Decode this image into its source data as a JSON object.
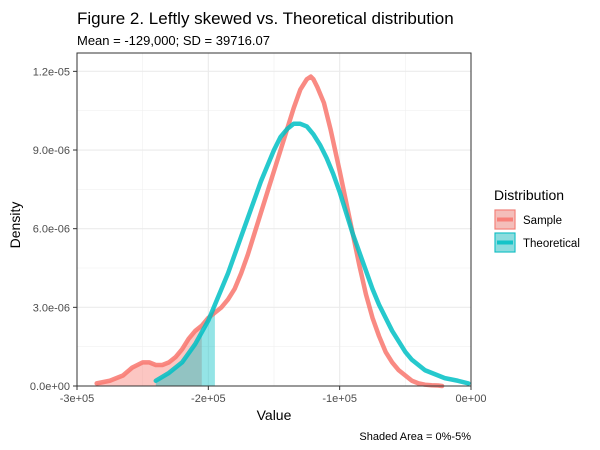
{
  "chart_data": {
    "type": "area",
    "title": "Figure 2. Leftly skewed vs. Theoretical distribution",
    "subtitle": "Mean = -129,000; SD = 39716.07",
    "xlabel": "Value",
    "ylabel": "Density",
    "caption": "Shaded Area = 0%-5%",
    "xlim": [
      -300000,
      0
    ],
    "ylim": [
      0,
      1.27e-05
    ],
    "x_ticks": [
      {
        "value": -300000,
        "label": "-3e+05"
      },
      {
        "value": -200000,
        "label": "-2e+05"
      },
      {
        "value": -100000,
        "label": "-1e+05"
      },
      {
        "value": 0,
        "label": "0e+00"
      }
    ],
    "y_ticks": [
      {
        "value": 0,
        "label": "0.0e+00"
      },
      {
        "value": 3e-06,
        "label": "3.0e-06"
      },
      {
        "value": 6e-06,
        "label": "6.0e-06"
      },
      {
        "value": 9e-06,
        "label": "9.0e-06"
      },
      {
        "value": 1.2e-05,
        "label": "1.2e-05"
      }
    ],
    "grid": true,
    "legend_title": "Distribution",
    "legend_position": "right",
    "series": [
      {
        "name": "Sample",
        "color": "#F8766D",
        "x": [
          -285000,
          -275000,
          -265000,
          -258000,
          -250000,
          -245000,
          -240000,
          -235000,
          -230000,
          -225000,
          -220000,
          -215000,
          -210000,
          -205000,
          -200000,
          -195000,
          -190000,
          -185000,
          -180000,
          -175000,
          -170000,
          -165000,
          -160000,
          -155000,
          -150000,
          -145000,
          -140000,
          -135000,
          -130000,
          -125000,
          -122000,
          -120000,
          -117000,
          -112000,
          -107000,
          -100000,
          -95000,
          -90000,
          -85000,
          -80000,
          -75000,
          -70000,
          -65000,
          -60000,
          -55000,
          -50000,
          -45000,
          -40000,
          -35000,
          -30000,
          -25000,
          -22000
        ],
        "y": [
          1e-07,
          2e-07,
          4e-07,
          7e-07,
          9e-07,
          9e-07,
          8e-07,
          8e-07,
          9e-07,
          1.1e-06,
          1.4e-06,
          1.8e-06,
          2.1e-06,
          2.3e-06,
          2.6e-06,
          2.8e-06,
          3e-06,
          3.3e-06,
          3.7e-06,
          4.3e-06,
          5e-06,
          5.8e-06,
          6.6e-06,
          7.4e-06,
          8.2e-06,
          9e-06,
          9.8e-06,
          1.06e-05,
          1.13e-05,
          1.17e-05,
          1.18e-05,
          1.17e-05,
          1.14e-05,
          1.08e-05,
          9.8e-06,
          8.2e-06,
          7e-06,
          5.8e-06,
          4.6e-06,
          3.5e-06,
          2.6e-06,
          1.9e-06,
          1.3e-06,
          9e-07,
          6e-07,
          4e-07,
          2e-07,
          1e-07,
          5e-08,
          3e-08,
          2e-08,
          0.0
        ],
        "shaded_range": [
          -285000,
          -205000
        ]
      },
      {
        "name": "Theoretical",
        "color": "#00BFC4",
        "x": [
          -240000,
          -230000,
          -220000,
          -210000,
          -200000,
          -195000,
          -190000,
          -185000,
          -180000,
          -175000,
          -170000,
          -165000,
          -160000,
          -155000,
          -150000,
          -145000,
          -140000,
          -135000,
          -130000,
          -125000,
          -120000,
          -115000,
          -110000,
          -105000,
          -100000,
          -95000,
          -90000,
          -85000,
          -80000,
          -75000,
          -70000,
          -65000,
          -60000,
          -55000,
          -50000,
          -45000,
          -40000,
          -35000,
          -30000,
          -25000,
          -20000,
          -10000,
          -2000
        ],
        "y": [
          2e-07,
          5e-07,
          9e-07,
          1.6e-06,
          2.5e-06,
          3.1e-06,
          3.7e-06,
          4.3e-06,
          5e-06,
          5.7e-06,
          6.4e-06,
          7.1e-06,
          7.8e-06,
          8.4e-06,
          9e-06,
          9.5e-06,
          9.8e-06,
          1e-05,
          1e-05,
          9.9e-06,
          9.6e-06,
          9.2e-06,
          8.7e-06,
          8.1e-06,
          7.4e-06,
          6.6e-06,
          5.8e-06,
          5.1e-06,
          4.4e-06,
          3.7e-06,
          3.1e-06,
          2.6e-06,
          2.1e-06,
          1.7e-06,
          1.3e-06,
          1e-06,
          8e-07,
          6e-07,
          5e-07,
          4e-07,
          3e-07,
          2e-07,
          1e-07
        ],
        "shaded_range": [
          -240000,
          -195000
        ]
      }
    ]
  }
}
